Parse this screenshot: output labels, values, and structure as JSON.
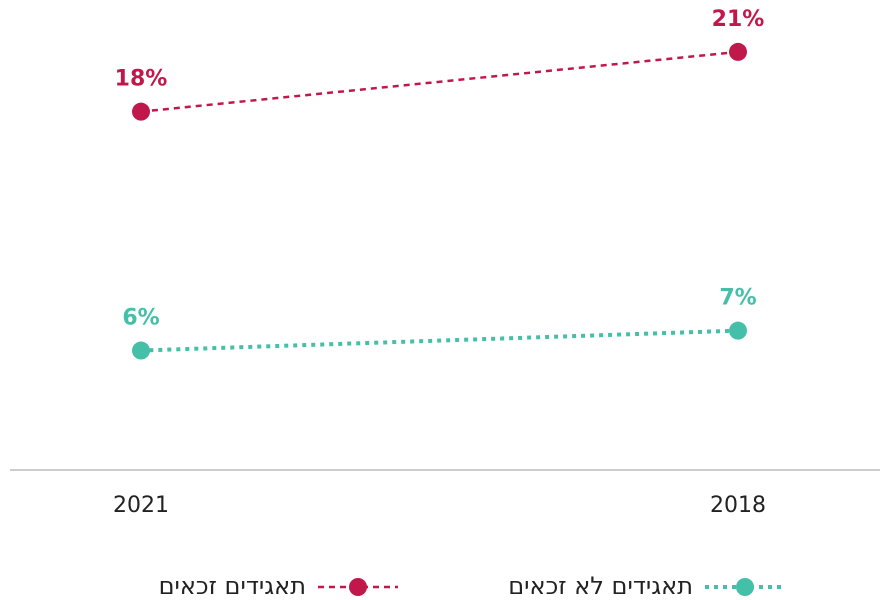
{
  "chart_data": {
    "type": "line",
    "categories": [
      "2018",
      "2021"
    ],
    "x_reversed": true,
    "series": [
      {
        "name": "תאגידים זכאים",
        "color": "#c0184a",
        "line_style": "dashed",
        "values": [
          21,
          18
        ],
        "value_labels": [
          "21%",
          "18%"
        ]
      },
      {
        "name": "תאגידים לא זכאים",
        "color": "#45c0a8",
        "line_style": "dotted",
        "values": [
          7,
          6
        ],
        "value_labels": [
          "7%",
          "6%"
        ]
      }
    ],
    "ylim": [
      0,
      22
    ]
  }
}
